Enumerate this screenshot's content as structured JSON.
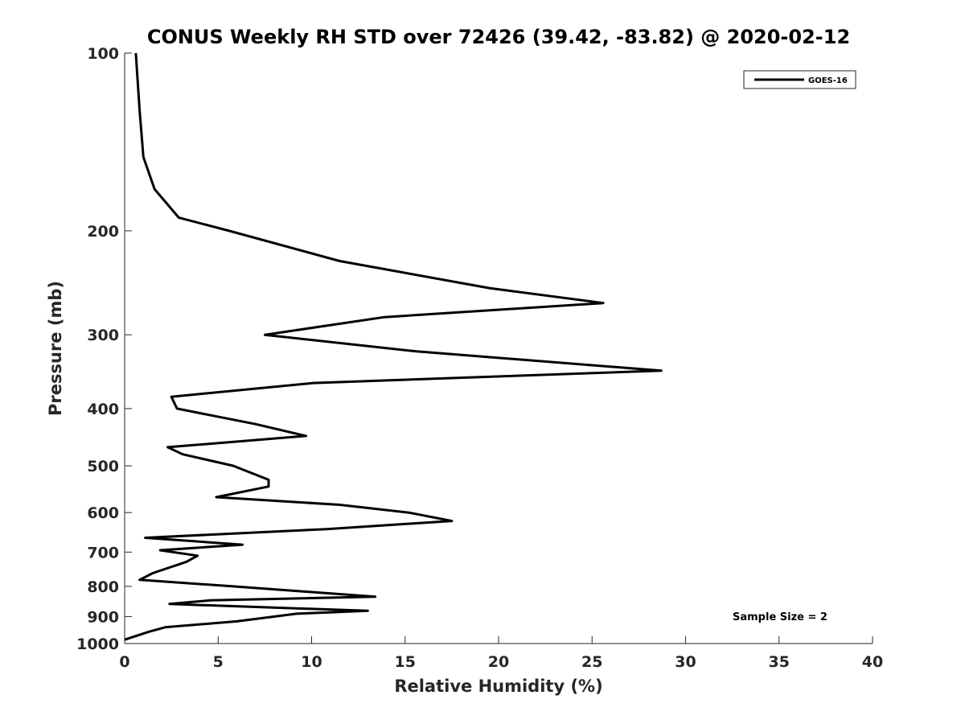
{
  "chart_data": {
    "type": "line",
    "title": "CONUS Weekly RH STD over 72426 (39.42, -83.82) @ 2020-02-12",
    "xlabel": "Relative Humidity (%)",
    "ylabel": "Pressure (mb)",
    "xlim": [
      0,
      40
    ],
    "ylim": [
      100,
      1000
    ],
    "y_scale": "log",
    "y_reversed": true,
    "xticks": [
      0,
      5,
      10,
      15,
      20,
      25,
      30,
      35,
      40
    ],
    "yticks": [
      100,
      200,
      300,
      400,
      500,
      600,
      700,
      800,
      900,
      1000
    ],
    "grid": false,
    "legend_position": "top-right",
    "annotation": "Sample Size = 2",
    "series": [
      {
        "name": "GOES-16",
        "color": "#000000",
        "points": [
          [
            0.6,
            100
          ],
          [
            0.8,
            125
          ],
          [
            1.0,
            150
          ],
          [
            1.6,
            170
          ],
          [
            2.9,
            190
          ],
          [
            5.6,
            200
          ],
          [
            11.5,
            225
          ],
          [
            19.5,
            250
          ],
          [
            25.6,
            265
          ],
          [
            13.9,
            280
          ],
          [
            7.5,
            300
          ],
          [
            15.6,
            320
          ],
          [
            28.7,
            345
          ],
          [
            10.1,
            362
          ],
          [
            2.5,
            382
          ],
          [
            2.8,
            400
          ],
          [
            7.0,
            425
          ],
          [
            9.7,
            445
          ],
          [
            2.3,
            465
          ],
          [
            3.1,
            478
          ],
          [
            5.8,
            500
          ],
          [
            7.7,
            528
          ],
          [
            7.7,
            542
          ],
          [
            4.9,
            565
          ],
          [
            11.5,
            582
          ],
          [
            15.2,
            600
          ],
          [
            17.5,
            620
          ],
          [
            10.8,
            640
          ],
          [
            1.1,
            662
          ],
          [
            6.3,
            680
          ],
          [
            1.9,
            695
          ],
          [
            3.9,
            710
          ],
          [
            3.3,
            727
          ],
          [
            1.5,
            760
          ],
          [
            0.8,
            780
          ],
          [
            5.8,
            800
          ],
          [
            13.4,
            833
          ],
          [
            4.6,
            845
          ],
          [
            2.4,
            857
          ],
          [
            13.0,
            880
          ],
          [
            9.2,
            890
          ],
          [
            6.0,
            917
          ],
          [
            2.2,
            938
          ],
          [
            1.3,
            955
          ],
          [
            0.0,
            985
          ]
        ]
      }
    ]
  }
}
